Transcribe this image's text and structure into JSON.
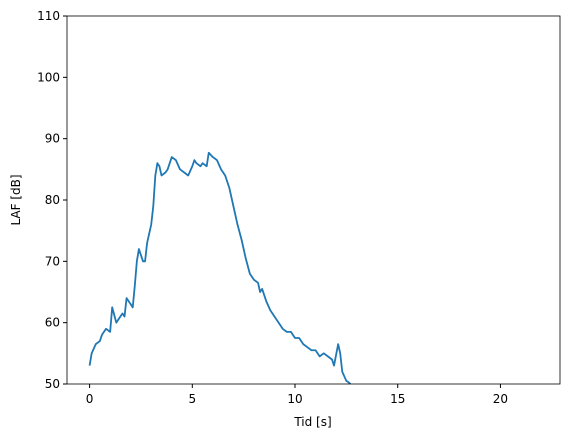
{
  "chart_data": {
    "type": "line",
    "x_label": "Tid [s]",
    "y_label": "LAF [dB]",
    "xlim": [
      -1.1,
      22.9
    ],
    "xticks": [
      0,
      5,
      10,
      15,
      20
    ],
    "ylim": [
      50,
      110
    ],
    "yticks": [
      50,
      60,
      70,
      80,
      90,
      100,
      110
    ],
    "series": [
      {
        "color": "#1f77b4",
        "x": [
          0,
          0.1,
          0.3,
          0.5,
          0.6,
          0.8,
          1.0,
          1.1,
          1.3,
          1.5,
          1.6,
          1.7,
          1.8,
          2.0,
          2.1,
          2.2,
          2.3,
          2.4,
          2.5,
          2.6,
          2.7,
          2.8,
          3.0,
          3.1,
          3.2,
          3.3,
          3.4,
          3.5,
          3.7,
          3.8,
          4.0,
          4.2,
          4.4,
          4.6,
          4.8,
          5.0,
          5.1,
          5.2,
          5.4,
          5.5,
          5.7,
          5.8,
          6.0,
          6.2,
          6.4,
          6.6,
          6.8,
          7.0,
          7.2,
          7.4,
          7.6,
          7.8,
          8.0,
          8.2,
          8.3,
          8.4,
          8.6,
          8.8,
          9.0,
          9.2,
          9.4,
          9.6,
          9.8,
          10.0,
          10.2,
          10.4,
          10.6,
          10.8,
          11.0,
          11.2,
          11.4,
          11.6,
          11.8,
          11.9,
          12.1,
          12.2,
          12.3,
          12.5,
          12.6,
          12.7
        ],
        "values": [
          53,
          55,
          56.5,
          57,
          58,
          59,
          58.5,
          62.5,
          60,
          61,
          61.5,
          61,
          64,
          63,
          62.5,
          66,
          70,
          72,
          71,
          70,
          70,
          73,
          76,
          79,
          84,
          86,
          85.5,
          84,
          84.5,
          85,
          87,
          86.5,
          85,
          84.5,
          84,
          85.5,
          86.5,
          86,
          85.5,
          86,
          85.5,
          87.7,
          87,
          86.5,
          85,
          84,
          82,
          79,
          76,
          73.5,
          70.5,
          68,
          67,
          66.5,
          65,
          65.5,
          63.5,
          62,
          61,
          60,
          59,
          58.5,
          58.5,
          57.5,
          57.5,
          56.5,
          56,
          55.5,
          55.5,
          54.5,
          55,
          54.5,
          54,
          53,
          56.5,
          55,
          52,
          50.5,
          50.3,
          50
        ]
      }
    ]
  }
}
